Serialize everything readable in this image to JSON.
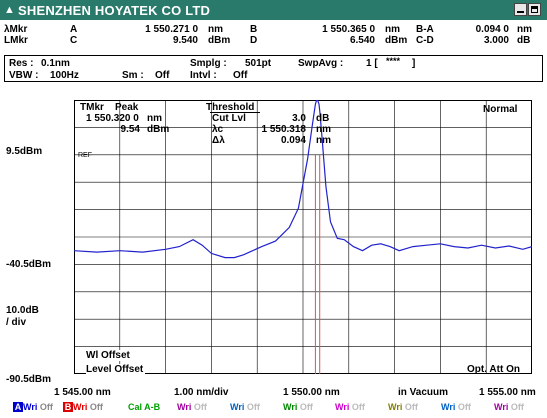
{
  "window": {
    "title": "SHENZHEN HOYATEK CO LTD",
    "title_color": "#2a7a6c"
  },
  "markers": {
    "amkr_label": "λMkr",
    "lmkr_label": "LMkr",
    "a_label": "A",
    "a_val": "1 550.271 0",
    "a_unit": "nm",
    "b_label": "B",
    "b_val": "1 550.365 0",
    "b_unit": "nm",
    "ba_label": "B-A",
    "ba_val": "0.094 0",
    "ba_unit": "nm",
    "c_label": "C",
    "c_val": "9.540",
    "c_unit": "dBm",
    "d_label": "D",
    "d_val": "6.540",
    "d_unit": "dBm",
    "cd_label": "C-D",
    "cd_val": "3.000",
    "cd_unit": "dB"
  },
  "settings": {
    "res_label": "Res :",
    "res_val": "0.1nm",
    "smplg_label": "Smplg :",
    "smplg_val": "501pt",
    "swpavg_label": "SwpAvg :",
    "swpavg_val": "1 [",
    "swpavg_stars": "****",
    "swpavg_close": "]",
    "vbw_label": "VBW :",
    "vbw_val": "100Hz",
    "sm_label": "Sm :",
    "sm_val": "Off",
    "intvl_label": "Intvl :",
    "intvl_val": "Off"
  },
  "plot_info": {
    "tmkr": "TMkr",
    "peak": "Peak",
    "peak_wl": "1 550.320 0",
    "peak_wl_unit": "nm",
    "peak_pw": "9.54",
    "peak_pw_unit": "dBm",
    "threshold": "Threshold",
    "cutlvl_label": "Cut Lvl",
    "cutlvl_val": "3.0",
    "cutlvl_unit": "dB",
    "lc_label": "λc",
    "lc_val": "1 550.318",
    "lc_unit": "nm",
    "dl_label": "Δλ",
    "dl_val": "0.094",
    "dl_unit": "nm",
    "mode": "Normal",
    "ref": "REF",
    "wl_offset": "Wl Offset",
    "level_offset": "Level Offset",
    "opt_att": "Opt. Att On"
  },
  "axis": {
    "y_top": "9.5dBm",
    "y_mid": "-40.5dBm",
    "y_div1": "10.0dB",
    "y_div2": "/ div",
    "y_bot": "-90.5dBm",
    "x_left": "1 545.00 nm",
    "x_div": "1.00 nm/div",
    "x_center": "1 550.00 nm",
    "x_medium": "in Vacuum",
    "x_right": "1 555.00 nm"
  },
  "channels": [
    {
      "letter": "A",
      "mode": "Wri",
      "state": "Off",
      "badge_color": "#0000cc",
      "color": "#0000cc"
    },
    {
      "letter": "B",
      "mode": "Wri",
      "state": "Off",
      "badge_color": "#dd0000",
      "color": "#dd0000"
    },
    {
      "letter": "",
      "mode": "Cal",
      "state": "A-B",
      "color": "#00a000"
    },
    {
      "letter": "",
      "mode": "Wri",
      "state": "Off",
      "color": "#a000a0"
    },
    {
      "letter": "",
      "mode": "Wri",
      "state": "Off",
      "color": "#0060c0"
    },
    {
      "letter": "",
      "mode": "Wri",
      "state": "Off",
      "color": "#008800"
    },
    {
      "letter": "",
      "mode": "Wri",
      "state": "Off",
      "color": "#cc00cc"
    },
    {
      "letter": "",
      "mode": "Wri",
      "state": "Off",
      "color": "#808000"
    },
    {
      "letter": "",
      "mode": "Wri",
      "state": "Off",
      "color": "#0060c0"
    },
    {
      "letter": "",
      "mode": "Wri",
      "state": "Off",
      "color": "#a000a0"
    }
  ],
  "chart_data": {
    "type": "line",
    "x_unit": "nm",
    "y_unit": "dBm",
    "xlim": [
      1545.0,
      1555.0
    ],
    "ylim": [
      -90.5,
      9.5
    ],
    "grid": true,
    "series": [
      {
        "color": "#2222cc",
        "x": [
          1545.0,
          1545.5,
          1546.0,
          1546.5,
          1547.0,
          1547.3,
          1547.6,
          1547.8,
          1548.0,
          1548.3,
          1548.5,
          1548.7,
          1548.9,
          1549.1,
          1549.4,
          1549.7,
          1549.9,
          1550.1,
          1550.2,
          1550.27,
          1550.3,
          1550.32,
          1550.35,
          1550.37,
          1550.42,
          1550.5,
          1550.6,
          1550.75,
          1550.9,
          1551.1,
          1551.3,
          1551.5,
          1551.7,
          1551.9,
          1552.1,
          1552.4,
          1552.7,
          1553.0,
          1553.3,
          1553.6,
          1553.9,
          1554.2,
          1554.5,
          1554.8,
          1555.0
        ],
        "y": [
          -45.5,
          -46.0,
          -45.5,
          -46.0,
          -45.0,
          -44.0,
          -41.5,
          -43.5,
          -46.5,
          -48.0,
          -48.0,
          -47.0,
          -45.5,
          -44.0,
          -42.0,
          -37.0,
          -30.0,
          -12.0,
          0.0,
          8.0,
          9.54,
          9.3,
          8.0,
          5.0,
          -5.0,
          -22.0,
          -35.0,
          -41.0,
          -41.5,
          -44.0,
          -45.5,
          -43.5,
          -43.0,
          -44.0,
          -45.5,
          -44.0,
          -43.5,
          -43.0,
          -44.0,
          -44.5,
          -43.5,
          -44.5,
          -43.8,
          -45.0,
          -44.0
        ]
      }
    ],
    "markers_nm": [
      1550.271,
      1550.365
    ]
  }
}
